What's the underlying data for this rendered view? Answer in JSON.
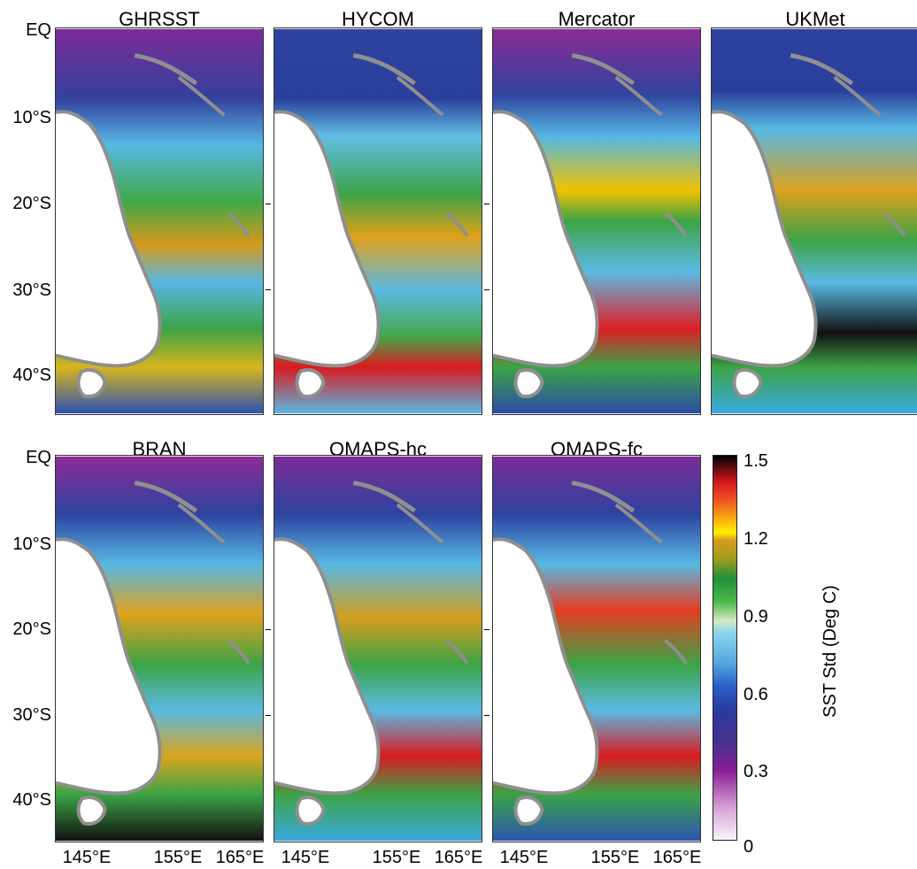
{
  "panels": [
    {
      "name": "GHRSST"
    },
    {
      "name": "HYCOM"
    },
    {
      "name": "Mercator"
    },
    {
      "name": "UKMet"
    },
    {
      "name": "BRAN"
    },
    {
      "name": "OMAPS-hc"
    },
    {
      "name": "OMAPS-fc"
    }
  ],
  "axes": {
    "lat_labels": [
      "EQ",
      "10°S",
      "20°S",
      "30°S",
      "40°S"
    ],
    "lon_labels": [
      "145°E",
      "155°E",
      "165°E"
    ]
  },
  "colorbar": {
    "title": "SST Std (Deg C)",
    "ticks": [
      "1.5",
      "1.2",
      "0.9",
      "0.6",
      "0.3",
      "0"
    ]
  },
  "colors": {
    "land": "#ffffff",
    "coast": "#8f8f8f",
    "low": "#7b2c97",
    "mid_low": "#2b4aa6",
    "mid": "#54b5e0",
    "mid_high": "#3fae49",
    "high": "#f2d100",
    "very_high": "#d71920",
    "max": "#000000"
  }
}
